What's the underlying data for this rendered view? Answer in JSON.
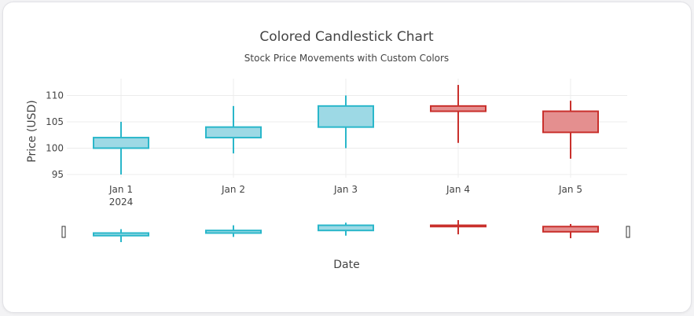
{
  "chart_data": {
    "type": "candlestick",
    "title": "Colored Candlestick Chart",
    "subtitle": "Stock Price Movements with Custom Colors",
    "xlabel": "Date",
    "ylabel": "Price (USD)",
    "x_tick_labels": [
      "Jan 1",
      "Jan 2",
      "Jan 3",
      "Jan 4",
      "Jan 5"
    ],
    "x_year_label": "2024",
    "y_ticks": [
      95,
      100,
      105,
      110
    ],
    "ylim": [
      94.4,
      113.2
    ],
    "grid": true,
    "range_slider": true,
    "colors": {
      "increasing_line": "#2ab7ca",
      "increasing_fill": "#9dd9e5",
      "decreasing_line": "#c9302c",
      "decreasing_fill": "#e48f8f",
      "grid": "#ececec",
      "text": "#444444"
    },
    "candles": [
      {
        "date": "Jan 1",
        "open": 100,
        "high": 105,
        "low": 95,
        "close": 102
      },
      {
        "date": "Jan 2",
        "open": 102,
        "high": 108,
        "low": 99,
        "close": 104
      },
      {
        "date": "Jan 3",
        "open": 104,
        "high": 110,
        "low": 100,
        "close": 108
      },
      {
        "date": "Jan 4",
        "open": 108,
        "high": 112,
        "low": 101,
        "close": 107
      },
      {
        "date": "Jan 5",
        "open": 107,
        "high": 109,
        "low": 98,
        "close": 103
      }
    ]
  }
}
